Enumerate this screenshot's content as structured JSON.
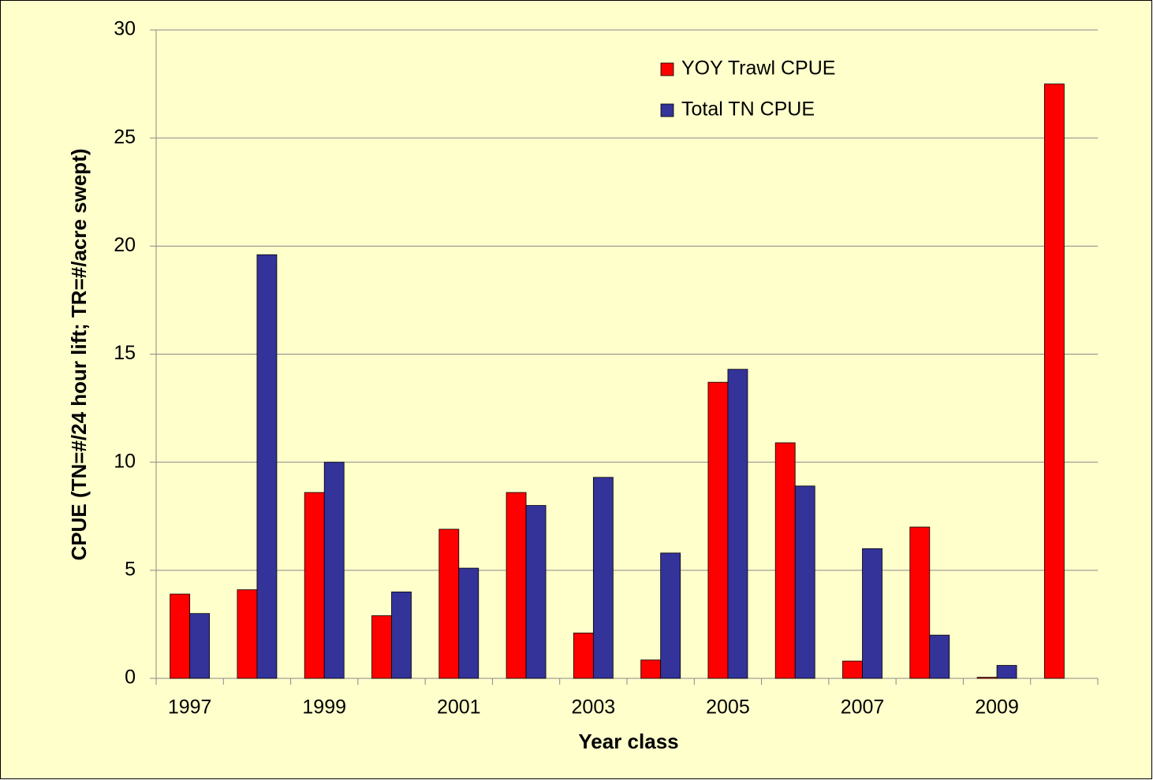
{
  "chart_data": {
    "type": "bar",
    "x_label": "Year class",
    "y_label": "CPUE (TN=#/24 hour lift; TR=#/acre swept)",
    "categories": [
      "1997",
      null,
      "1999",
      null,
      "2001",
      null,
      "2003",
      null,
      "2005",
      null,
      "2007",
      null,
      "2009",
      null
    ],
    "series": [
      {
        "name": "YOY Trawl CPUE",
        "color": "#ff0000",
        "values": [
          3.9,
          4.1,
          8.6,
          2.9,
          6.9,
          8.6,
          2.1,
          0.85,
          13.7,
          10.9,
          0.8,
          7.0,
          0.05,
          27.5
        ]
      },
      {
        "name": "Total TN CPUE",
        "color": "#333399",
        "values": [
          3.0,
          19.6,
          10.0,
          4.0,
          5.1,
          8.0,
          9.3,
          5.8,
          14.3,
          8.9,
          6.0,
          2.0,
          0.6,
          null
        ]
      }
    ],
    "ylim": [
      0,
      30
    ],
    "yticks": [
      0,
      5,
      10,
      15,
      20,
      25,
      30
    ],
    "grid": true,
    "legend": "top-right"
  }
}
